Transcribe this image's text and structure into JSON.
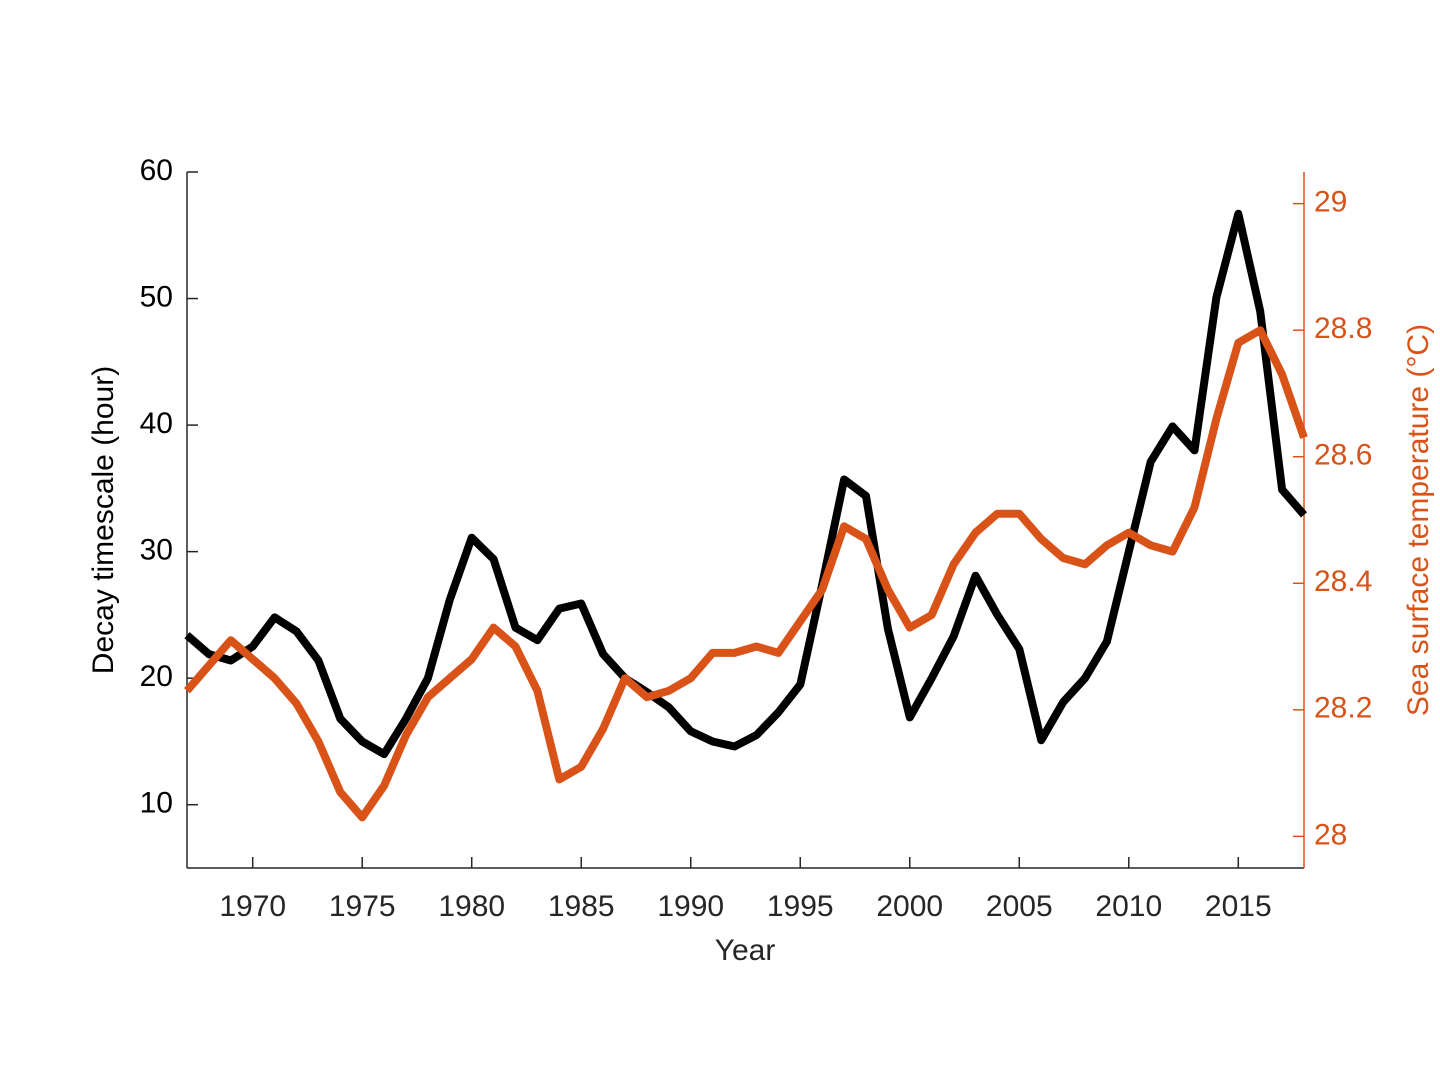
{
  "chart_data": {
    "type": "line",
    "x_label": "Year",
    "y_label": "Decay timescale (hour)",
    "y2_label": "Sea surface temperature (°C)",
    "x": [
      1967,
      1968,
      1969,
      1970,
      1971,
      1972,
      1973,
      1974,
      1975,
      1976,
      1977,
      1978,
      1979,
      1980,
      1981,
      1982,
      1983,
      1984,
      1985,
      1986,
      1987,
      1988,
      1989,
      1990,
      1991,
      1992,
      1993,
      1994,
      1995,
      1996,
      1997,
      1998,
      1999,
      2000,
      2001,
      2002,
      2003,
      2004,
      2005,
      2006,
      2007,
      2008,
      2009,
      2010,
      2011,
      2012,
      2013,
      2014,
      2015,
      2016,
      2017,
      2018
    ],
    "series": [
      {
        "color": "#000000",
        "axis": "y",
        "values": [
          23.4,
          21.9,
          21.4,
          22.5,
          24.8,
          23.7,
          21.4,
          16.8,
          15.0,
          14.0,
          16.8,
          20.0,
          26.2,
          31.1,
          29.4,
          24.0,
          23.0,
          25.5,
          25.9,
          21.9,
          20.0,
          18.9,
          17.7,
          15.8,
          15.0,
          14.6,
          15.5,
          17.3,
          19.5,
          27.4,
          35.7,
          34.4,
          23.9,
          16.9,
          20.0,
          23.3,
          28.1,
          25.0,
          22.3,
          15.1,
          18.1,
          20.0,
          22.9,
          30.0,
          37.1,
          39.9,
          38.0,
          50.1,
          56.7,
          49.0,
          34.9,
          32.9
        ]
      },
      {
        "color": "#d95319",
        "axis": "y2",
        "values": [
          28.23,
          28.27,
          28.31,
          28.28,
          28.25,
          28.21,
          28.15,
          28.07,
          28.03,
          28.08,
          28.16,
          28.22,
          28.25,
          28.28,
          28.33,
          28.3,
          28.23,
          28.09,
          28.11,
          28.17,
          28.25,
          28.22,
          28.23,
          28.25,
          28.29,
          28.29,
          28.3,
          28.29,
          28.34,
          28.39,
          28.49,
          28.47,
          28.39,
          28.33,
          28.35,
          28.43,
          28.48,
          28.51,
          28.51,
          28.47,
          28.44,
          28.43,
          28.46,
          28.48,
          28.46,
          28.45,
          28.52,
          28.66,
          28.78,
          28.8,
          28.73,
          28.63
        ]
      }
    ],
    "xlim": [
      1967,
      2018
    ],
    "xticks": [
      1970,
      1975,
      1980,
      1985,
      1990,
      1995,
      2000,
      2005,
      2010,
      2015
    ],
    "ylim": [
      5,
      60
    ],
    "yticks": [
      10,
      20,
      30,
      40,
      50,
      60
    ],
    "y2lim": [
      27.95,
      29.05
    ],
    "y2ticks": [
      28,
      28.2,
      28.4,
      28.6,
      28.8,
      29
    ],
    "y2_color": "#d95319"
  }
}
